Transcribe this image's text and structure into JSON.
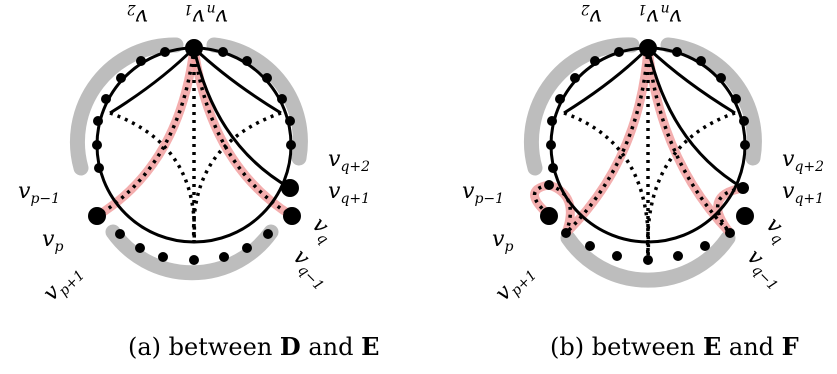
{
  "panels": [
    {
      "id": "a",
      "caption": {
        "prefix": "(a) between ",
        "first": "D",
        "mid": " and ",
        "second": "E"
      },
      "labels": {
        "v2": "v",
        "v2_sub": "2",
        "v1": "v",
        "v1_sub": "1",
        "vn": "v",
        "vn_sub": "n",
        "vq2": "v",
        "vq2_sub": "q+2",
        "vq1": "v",
        "vq1_sub": "q+1",
        "vq": "v",
        "vq_sub": "q",
        "vqm1": "v",
        "vqm1_sub": "q−1",
        "vpm1": "v",
        "vpm1_sub": "p−1",
        "vp": "v",
        "vp_sub": "p",
        "vpp1": "v",
        "vpp1_sub": "p+1"
      }
    },
    {
      "id": "b",
      "caption": {
        "prefix": "(b) between ",
        "first": "E",
        "mid": " and ",
        "second": "F"
      },
      "labels": {
        "v2": "v",
        "v2_sub": "2",
        "v1": "v",
        "v1_sub": "1",
        "vn": "v",
        "vn_sub": "n",
        "vq2": "v",
        "vq2_sub": "q+2",
        "vq1": "v",
        "vq1_sub": "q+1",
        "vq": "v",
        "vq_sub": "q",
        "vqm1": "v",
        "vqm1_sub": "q−1",
        "vpm1": "v",
        "vpm1_sub": "p−1",
        "vp": "v",
        "vp_sub": "p",
        "vpp1": "v",
        "vpp1_sub": "p+1"
      }
    }
  ],
  "colors": {
    "stroke": "#000000",
    "highlight_band": "#bdbdbd",
    "red_glow": "#f2a0a0"
  }
}
